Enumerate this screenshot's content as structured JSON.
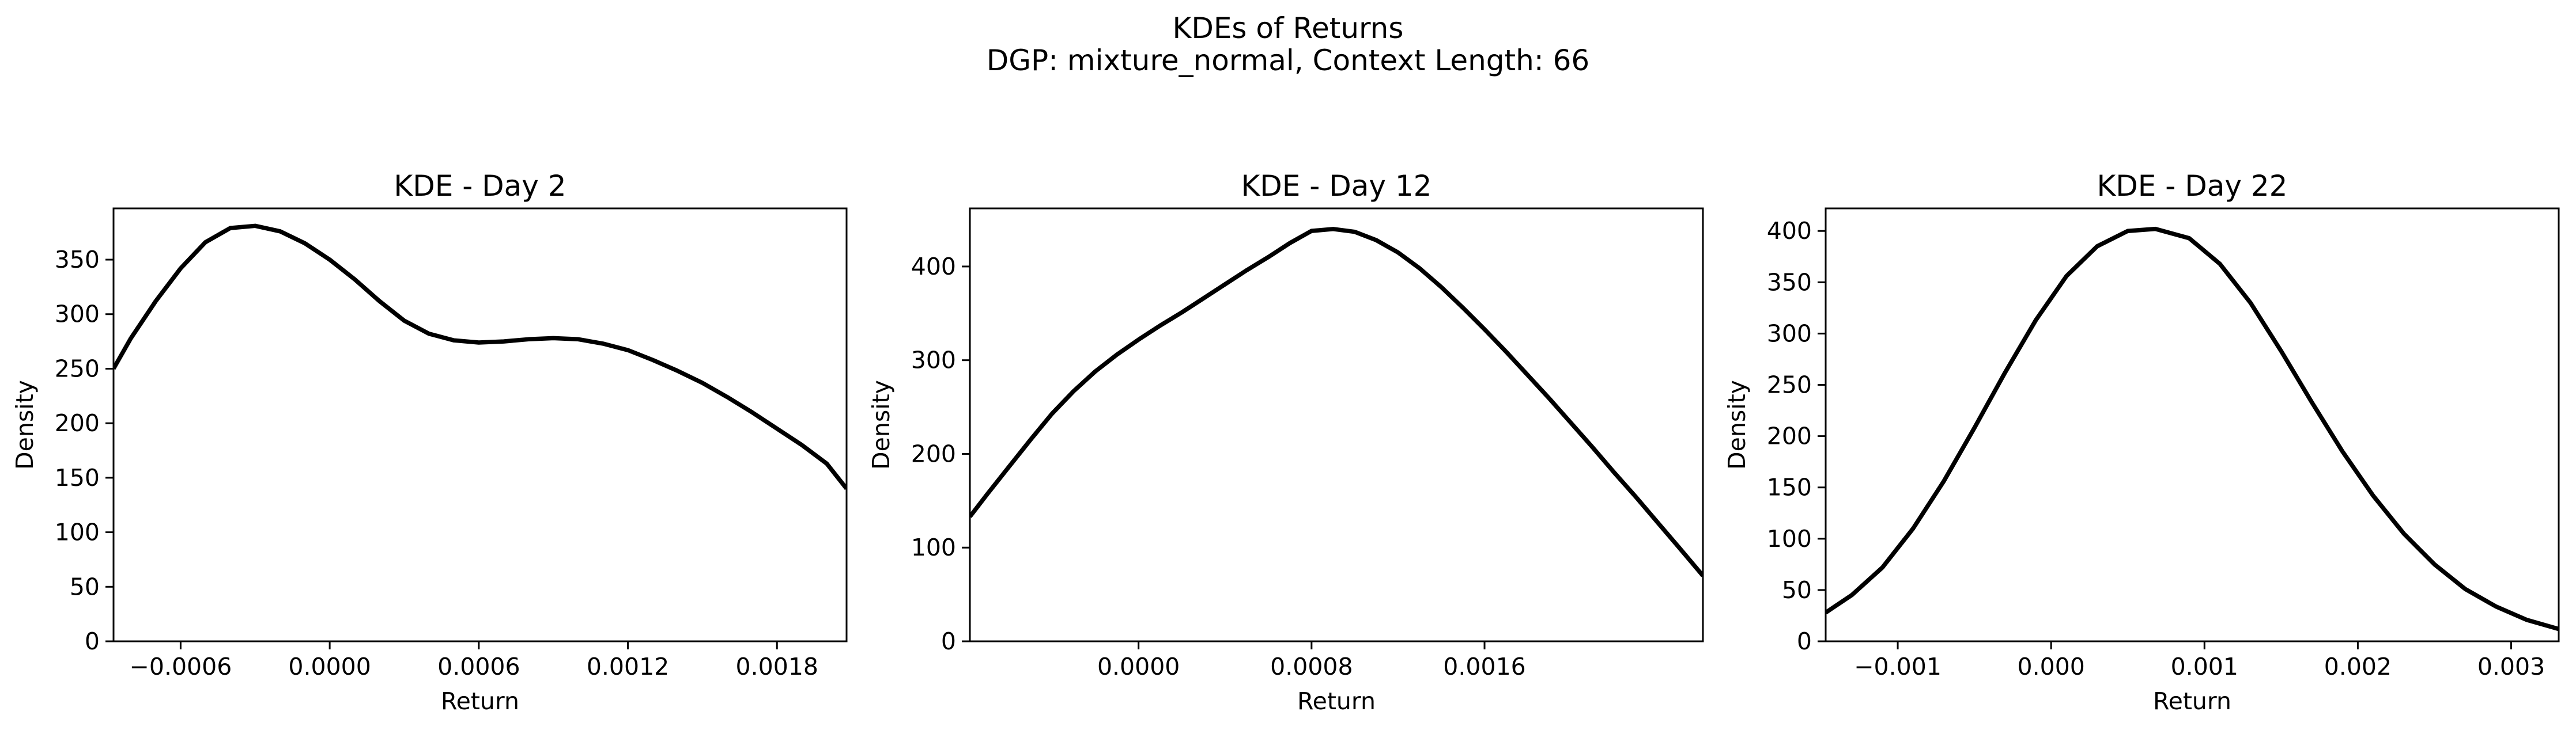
{
  "figure": {
    "title_line1": "KDEs of Returns",
    "title_line2": "DGP: mixture_normal, Context Length: 66",
    "line_color": "#000000"
  },
  "chart_data": [
    {
      "type": "line",
      "title": "KDE - Day 2",
      "xlabel": "Return",
      "ylabel": "Density",
      "xlim": [
        -0.00087,
        0.00208
      ],
      "ylim": [
        0,
        397
      ],
      "xticks": [
        -0.0006,
        0.0,
        0.0006,
        0.0012,
        0.0018
      ],
      "xtick_labels": [
        "−0.0006",
        "0.0000",
        "0.0006",
        "0.0012",
        "0.0018"
      ],
      "yticks": [
        0,
        50,
        100,
        150,
        200,
        250,
        300,
        350
      ],
      "ytick_labels": [
        "0",
        "50",
        "100",
        "150",
        "200",
        "250",
        "300",
        "350"
      ],
      "series": [
        {
          "x": [
            -0.00087,
            -0.0008,
            -0.0007,
            -0.0006,
            -0.0005,
            -0.0004,
            -0.0003,
            -0.0002,
            -0.0001,
            0.0,
            0.0001,
            0.0002,
            0.0003,
            0.0004,
            0.0005,
            0.0006,
            0.0007,
            0.0008,
            0.0009,
            0.001,
            0.0011,
            0.0012,
            0.0013,
            0.0014,
            0.0015,
            0.0016,
            0.0017,
            0.0018,
            0.0019,
            0.002,
            0.00208
          ],
          "y": [
            250,
            278,
            312,
            342,
            366,
            379,
            381,
            376,
            365,
            350,
            332,
            312,
            294,
            282,
            276,
            274,
            275,
            277,
            278,
            277,
            273,
            267,
            258,
            248,
            237,
            224,
            210,
            195,
            180,
            163,
            140
          ]
        }
      ]
    },
    {
      "type": "line",
      "title": "KDE - Day 12",
      "xlabel": "Return",
      "ylabel": "Density",
      "xlim": [
        -0.00078,
        0.00261
      ],
      "ylim": [
        0,
        462
      ],
      "xticks": [
        0.0,
        0.0008,
        0.0016
      ],
      "xtick_labels": [
        "0.0000",
        "0.0008",
        "0.0016"
      ],
      "yticks": [
        0,
        100,
        200,
        300,
        400
      ],
      "ytick_labels": [
        "0",
        "100",
        "200",
        "300",
        "400"
      ],
      "series": [
        {
          "x": [
            -0.00078,
            -0.0007,
            -0.0006,
            -0.0005,
            -0.0004,
            -0.0003,
            -0.0002,
            -0.0001,
            0.0,
            0.0001,
            0.0002,
            0.0003,
            0.0004,
            0.0005,
            0.0006,
            0.0007,
            0.0008,
            0.0009,
            0.001,
            0.0011,
            0.0012,
            0.0013,
            0.0014,
            0.0015,
            0.0016,
            0.0017,
            0.0018,
            0.0019,
            0.002,
            0.0021,
            0.0022,
            0.0023,
            0.0024,
            0.0025,
            0.00261
          ],
          "y": [
            133,
            157,
            186,
            215,
            243,
            267,
            288,
            306,
            322,
            337,
            351,
            366,
            381,
            396,
            410,
            425,
            438,
            440,
            437,
            428,
            415,
            398,
            378,
            356,
            333,
            309,
            284,
            259,
            233,
            207,
            180,
            154,
            127,
            100,
            70
          ]
        }
      ]
    },
    {
      "type": "line",
      "title": "KDE - Day 22",
      "xlabel": "Return",
      "ylabel": "Density",
      "xlim": [
        -0.00147,
        0.00331
      ],
      "ylim": [
        0,
        422
      ],
      "xticks": [
        -0.001,
        0.0,
        0.001,
        0.002,
        0.003
      ],
      "xtick_labels": [
        "−0.001",
        "0.000",
        "0.001",
        "0.002",
        "0.003"
      ],
      "yticks": [
        0,
        50,
        100,
        150,
        200,
        250,
        300,
        350,
        400
      ],
      "ytick_labels": [
        "0",
        "50",
        "100",
        "150",
        "200",
        "250",
        "300",
        "350",
        "400"
      ],
      "series": [
        {
          "x": [
            -0.00147,
            -0.0013,
            -0.0011,
            -0.0009,
            -0.0007,
            -0.0005,
            -0.0003,
            -0.0001,
            0.0001,
            0.0003,
            0.0005,
            0.00068,
            0.0009,
            0.0011,
            0.0013,
            0.0015,
            0.0017,
            0.0019,
            0.0021,
            0.0023,
            0.0025,
            0.0027,
            0.0029,
            0.0031,
            0.00331
          ],
          "y": [
            28,
            45,
            72,
            110,
            156,
            208,
            262,
            313,
            356,
            385,
            400,
            402,
            393,
            368,
            330,
            283,
            233,
            185,
            142,
            105,
            75,
            51,
            34,
            21,
            12
          ]
        }
      ]
    }
  ]
}
